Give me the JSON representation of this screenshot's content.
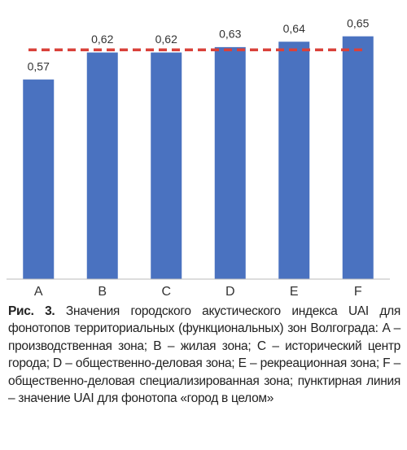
{
  "chart_data": {
    "type": "bar",
    "categories": [
      "A",
      "B",
      "C",
      "D",
      "E",
      "F"
    ],
    "values": [
      0.57,
      0.62,
      0.62,
      0.63,
      0.64,
      0.65
    ],
    "value_labels": [
      "0,57",
      "0,62",
      "0,62",
      "0,63",
      "0,64",
      "0,65"
    ],
    "color": "#4a72c0",
    "reference_line": {
      "value": 0.625,
      "color": "#d9413a"
    },
    "ylim": [
      0.2,
      0.66
    ]
  },
  "caption": {
    "label": "Рис. 3.",
    "text": "Значения городского акустического индекса UAI для фонотопов территориальных (функциональных) зон Волгограда: A – производственная зона; B – жилая зона; C – исторический центр города; D – общественно-деловая зона; E – рекреационная зона; F – общественно-деловая специализированная зона; пунктирная линия – значение UAI для фонотопа «город в целом»"
  }
}
